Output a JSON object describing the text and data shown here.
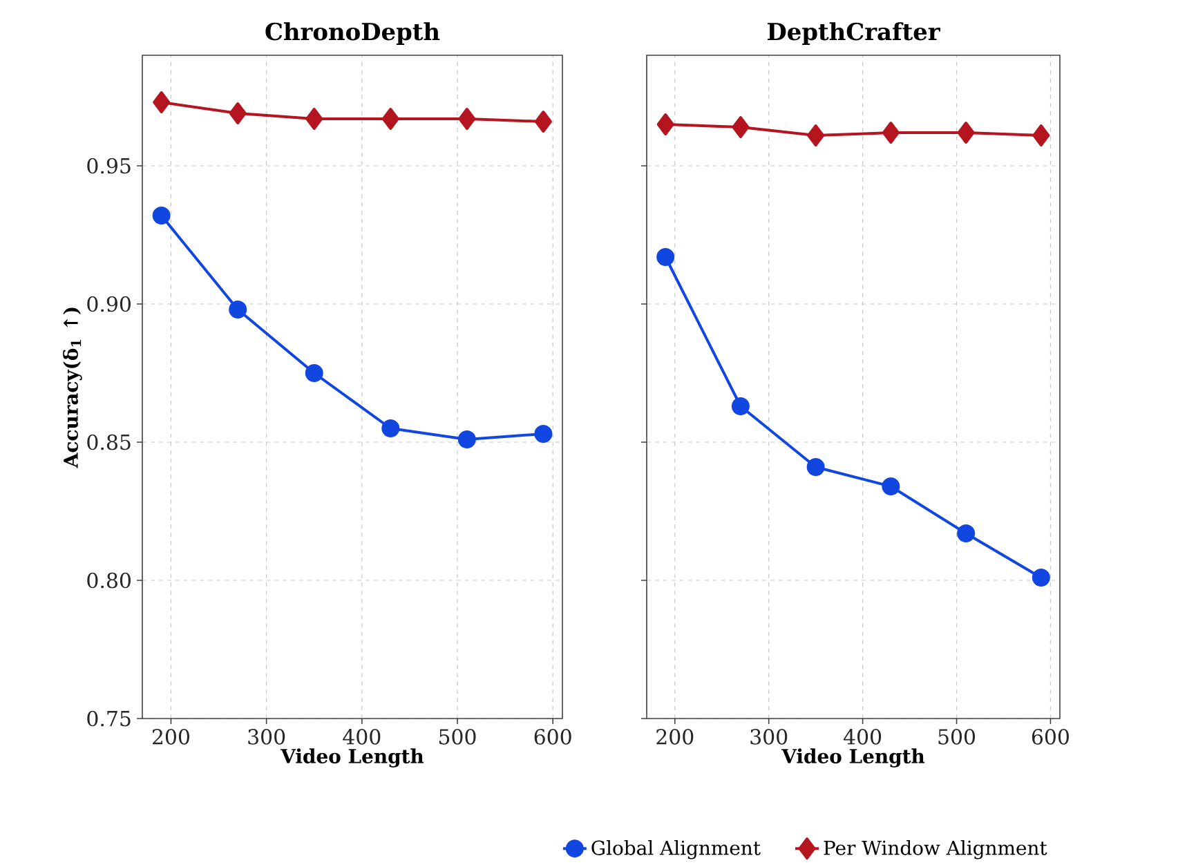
{
  "chart_data": [
    {
      "type": "line",
      "title": "ChronoDepth",
      "xlabel": "Video Length",
      "ylabel": "Accuracy(δ$_{1}$ ↑)",
      "x": [
        190,
        270,
        350,
        430,
        510,
        590
      ],
      "series": [
        {
          "color": "#1147e0",
          "marker": "circle",
          "values": [
            0.932,
            0.898,
            0.875,
            0.855,
            0.851,
            0.853
          ]
        },
        {
          "color": "#b5151f",
          "marker": "diamond",
          "values": [
            0.973,
            0.969,
            0.967,
            0.967,
            0.967,
            0.966
          ]
        }
      ],
      "xlim": [
        170,
        610
      ],
      "ylim": [
        0.75,
        0.99
      ],
      "xticks": [
        200,
        300,
        400,
        500,
        600
      ],
      "yticks": [
        {
          "value": 0.75,
          "label": "0.75"
        },
        {
          "value": 0.8,
          "label": "0.80"
        },
        {
          "value": 0.85,
          "label": "0.85"
        },
        {
          "value": 0.9,
          "label": "0.90"
        },
        {
          "value": 0.95,
          "label": "0.95"
        }
      ],
      "grid": true,
      "legend": false,
      "line_style": "solid"
    },
    {
      "type": "line",
      "title": "DepthCrafter",
      "xlabel": "Video Length",
      "x": [
        190,
        270,
        350,
        430,
        510,
        590
      ],
      "series": [
        {
          "name": "Global Alignment",
          "color": "#1147e0",
          "marker": "circle",
          "values": [
            0.917,
            0.863,
            0.841,
            0.834,
            0.817,
            0.801
          ]
        },
        {
          "name": "Per Window Alignment",
          "color": "#b5151f",
          "marker": "diamond",
          "values": [
            0.965,
            0.964,
            0.961,
            0.962,
            0.962,
            0.961
          ]
        }
      ],
      "xlim": [
        170,
        610
      ],
      "ylim": [
        0.75,
        0.99
      ],
      "xticks": [
        200,
        300,
        400,
        500,
        600
      ],
      "yticks": [
        0.75,
        0.8,
        0.85,
        0.9,
        0.95
      ],
      "grid": true,
      "legend": "bottom",
      "tick_labels": "x",
      "line_style": "solid"
    }
  ]
}
